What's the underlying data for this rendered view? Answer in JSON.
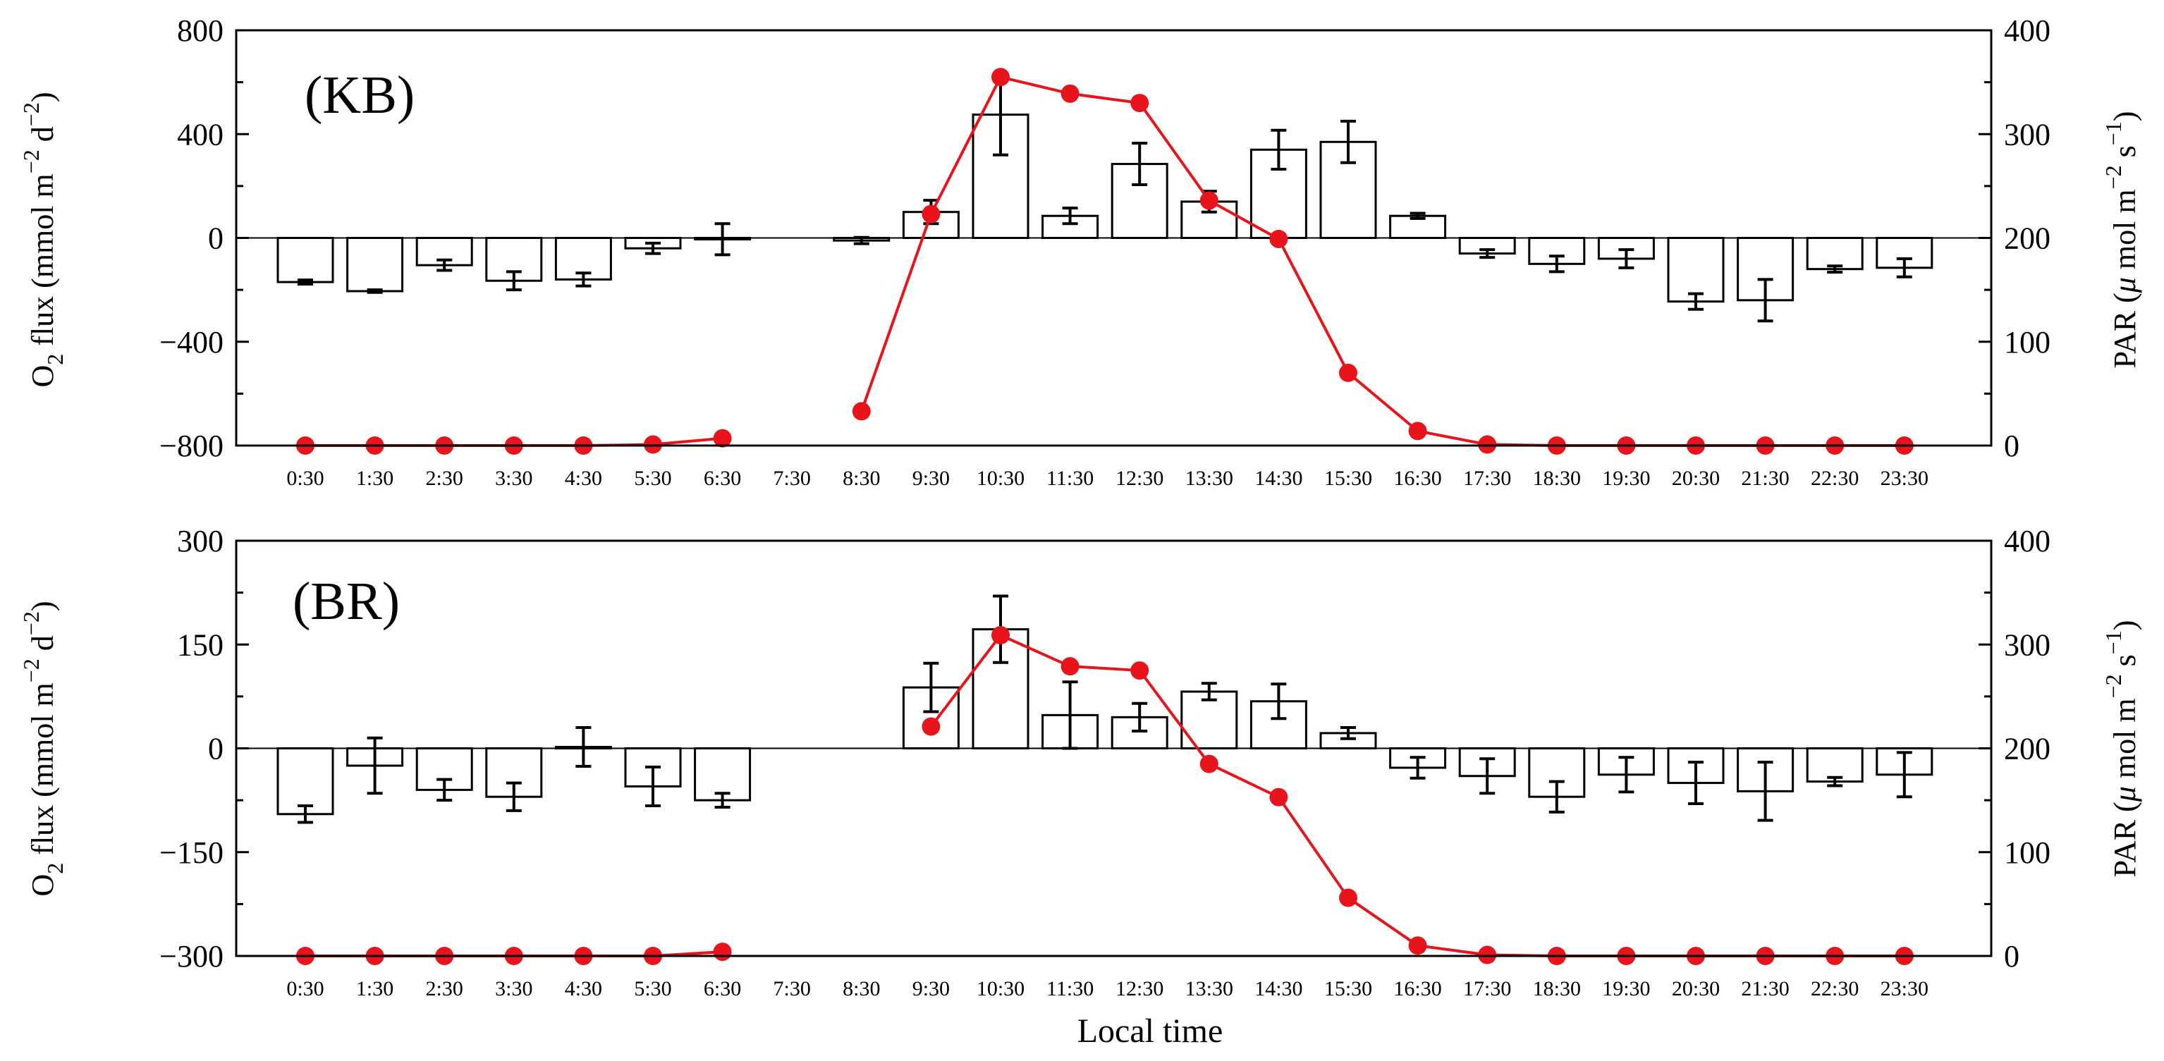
{
  "figure": {
    "x_axis_label": "Local time",
    "left_axis_label_parts": [
      "O",
      "2",
      " flux (mmol m",
      "−2",
      " d",
      "−2",
      ")"
    ],
    "right_axis_label_parts": [
      "PAR (",
      "μ",
      " mol m",
      "−2",
      " s",
      "−1",
      ")"
    ]
  },
  "chart_data": [
    {
      "type": "bar",
      "panel_label": "(KB)",
      "categories": [
        "0:30",
        "1:30",
        "2:30",
        "3:30",
        "4:30",
        "5:30",
        "6:30",
        "7:30",
        "8:30",
        "9:30",
        "10:30",
        "11:30",
        "12:30",
        "13:30",
        "14:30",
        "15:30",
        "16:30",
        "17:30",
        "18:30",
        "19:30",
        "20:30",
        "21:30",
        "22:30",
        "23:30"
      ],
      "bar_series": {
        "name": "O2 flux",
        "values": [
          -170,
          -205,
          -105,
          -165,
          -160,
          -40,
          -5,
          null,
          -10,
          100,
          475,
          85,
          285,
          140,
          340,
          370,
          85,
          -60,
          -100,
          -80,
          -245,
          -240,
          -120,
          -115
        ],
        "errors": [
          8,
          5,
          20,
          35,
          25,
          20,
          60,
          null,
          12,
          45,
          155,
          30,
          80,
          40,
          75,
          80,
          10,
          15,
          30,
          35,
          30,
          80,
          12,
          35
        ]
      },
      "line_series": {
        "name": "PAR",
        "color": "#e8141c",
        "values": [
          0,
          0,
          0,
          0,
          0,
          1,
          7,
          null,
          33,
          223,
          355,
          339,
          330,
          236,
          199,
          70,
          14,
          1,
          0,
          0,
          0,
          0,
          0,
          0
        ]
      },
      "y_left": {
        "min": -800,
        "max": 800,
        "ticks": [
          -800,
          -400,
          0,
          400,
          800
        ],
        "tick_labels": [
          "−800",
          "−400",
          "0",
          "400",
          "800"
        ]
      },
      "y_right": {
        "min": 0,
        "max": 400,
        "ticks": [
          0,
          100,
          200,
          300,
          400
        ],
        "tick_labels": [
          "0",
          "100",
          "200",
          "300",
          "400"
        ]
      }
    },
    {
      "type": "bar",
      "panel_label": "(BR)",
      "categories": [
        "0:30",
        "1:30",
        "2:30",
        "3:30",
        "4:30",
        "5:30",
        "6:30",
        "7:30",
        "8:30",
        "9:30",
        "10:30",
        "11:30",
        "12:30",
        "13:30",
        "14:30",
        "15:30",
        "16:30",
        "17:30",
        "18:30",
        "19:30",
        "20:30",
        "21:30",
        "22:30",
        "23:30"
      ],
      "bar_series": {
        "name": "O2 flux",
        "values": [
          -95,
          -25,
          -60,
          -70,
          2,
          -55,
          -75,
          null,
          null,
          88,
          172,
          48,
          45,
          82,
          68,
          22,
          -28,
          -40,
          -70,
          -38,
          -50,
          -62,
          -48,
          -38
        ],
        "errors": [
          12,
          40,
          15,
          20,
          28,
          28,
          10,
          null,
          null,
          35,
          48,
          48,
          20,
          12,
          25,
          8,
          15,
          25,
          22,
          25,
          30,
          42,
          6,
          32
        ]
      },
      "line_series": {
        "name": "PAR",
        "color": "#e8141c",
        "values": [
          0,
          0,
          0,
          0,
          0,
          0,
          4,
          null,
          null,
          221,
          309,
          279,
          275,
          185,
          153,
          56,
          10,
          1,
          0,
          0,
          0,
          0,
          0,
          0
        ]
      },
      "y_left": {
        "min": -300,
        "max": 300,
        "ticks": [
          -300,
          -150,
          0,
          150,
          300
        ],
        "tick_labels": [
          "−300",
          "−150",
          "0",
          "150",
          "300"
        ]
      },
      "y_right": {
        "min": 0,
        "max": 400,
        "ticks": [
          0,
          100,
          200,
          300,
          400
        ],
        "tick_labels": [
          "0",
          "100",
          "200",
          "300",
          "400"
        ]
      }
    }
  ]
}
